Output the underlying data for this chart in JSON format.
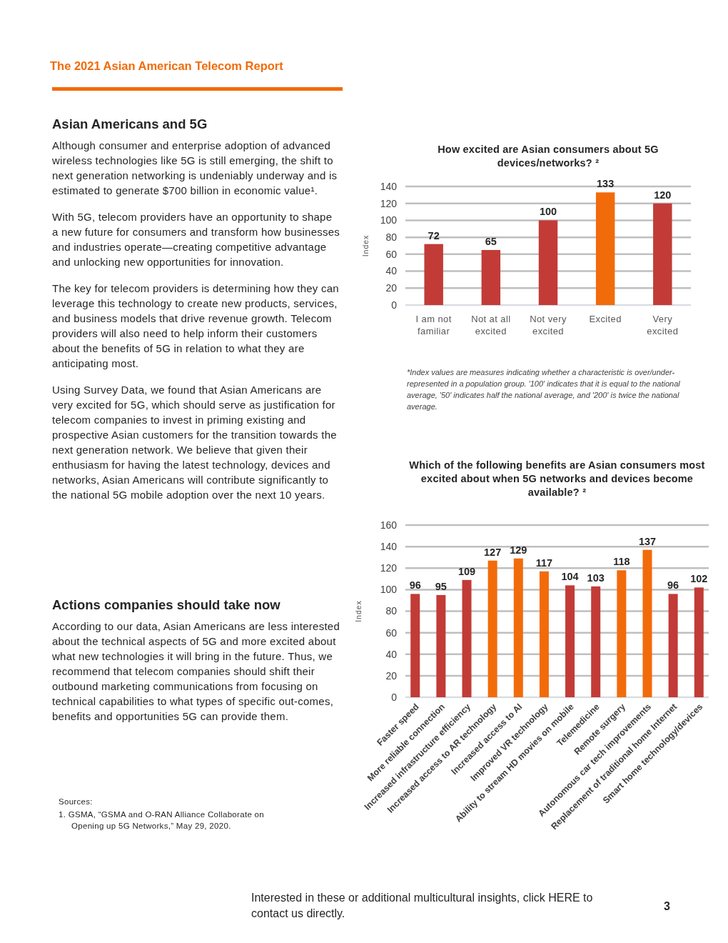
{
  "chart_data": [
    {
      "type": "other",
      "title": "The 2021 Asian American Telecom Report"
    },
    {
      "type": "other",
      "title": "Asian Americans and 5G",
      "annotations": [
        "Although consumer and enterprise adoption of advanced wireless technologies like 5G is still emerging, the shift to next generation networking is undeniably underway and is estimated to generate $700 billion in economic value¹.",
        "With 5G, telecom providers have an opportunity to shape a new future for consumers and transform how businesses and industries operate—creating competitive advantage and unlocking new opportunities for innovation.",
        "The key for telecom providers is determining how they can leverage this technology to create new products, services, and business models that drive revenue growth. Telecom providers will also need to help inform their customers about the benefits of 5G in relation to what they are anticipating most.",
        "Using Survey Data, we found that Asian Americans are very excited for 5G, which should serve as justification for telecom companies to invest in priming existing and prospective Asian customers for the transition towards the next generation network. We believe that given their enthusiasm for having the latest technology, devices and networks, Asian Americans will contribute significantly to the national 5G mobile adoption over the next 10 years."
      ]
    },
    {
      "type": "bar",
      "title": "How excited are Asian consumers about 5G devices/networks? ²",
      "ylabel": "Index",
      "categories": [
        "I am not familiar",
        "Not at all excited",
        "Not very excited",
        "Excited",
        "Very excited"
      ],
      "values": [
        72,
        65,
        100,
        133,
        120
      ],
      "colors": [
        "#c23b37",
        "#c23b37",
        "#c23b37",
        "#f26b0a",
        "#c23b37"
      ],
      "ylim": [
        0,
        140
      ],
      "yticks": [
        0,
        20,
        40,
        60,
        80,
        100,
        120,
        140
      ],
      "grid": "y",
      "data_labels": true,
      "annotations": [
        "*Index values are measures indicating whether a characteristic is over/under-represented in a population group. '100' indicates that it is equal to the national average, '50' indicates half the national average, and '200' is twice the national average."
      ]
    },
    {
      "type": "bar",
      "title": "Which of the following benefits are Asian consumers most excited about when 5G networks and devices become available? ²",
      "ylabel": "Index",
      "categories": [
        "Faster speed",
        "More reliable connection",
        "Increased infrastructure efficiency",
        "Increased access to AR technology",
        "Increased access to AI",
        "Improved VR technology",
        "Ability to stream HD movies on mobile",
        "Telemedicine",
        "Remote surgery",
        "Autonomous car tech improvements",
        "Replacement of traditional home Internet",
        "Smart home technology/devices"
      ],
      "values": [
        96,
        95,
        109,
        127,
        129,
        117,
        104,
        103,
        118,
        137,
        96,
        102
      ],
      "colors": [
        "#c23b37",
        "#c23b37",
        "#c23b37",
        "#f26b0a",
        "#f26b0a",
        "#f26b0a",
        "#c23b37",
        "#c23b37",
        "#f26b0a",
        "#f26b0a",
        "#c23b37",
        "#c23b37"
      ],
      "ylim": [
        0,
        160
      ],
      "yticks": [
        0,
        20,
        40,
        60,
        80,
        100,
        120,
        140,
        160
      ],
      "grid": "y",
      "data_labels": true
    },
    {
      "type": "other",
      "title": "Actions companies should take now",
      "annotations": [
        "According to our data, Asian Americans are less interested about the technical aspects of 5G and more excited about what new technologies it will bring in the future. Thus, we recommend that telecom companies should shift their outbound marketing communications from focusing on technical capabilities to what types of specific out-comes, benefits and opportunities 5G can provide them."
      ]
    },
    {
      "type": "other",
      "title": "Sources:",
      "annotations": [
        "1. GSMA, “GSMA and O-RAN Alliance Collaborate on Opening up 5G Networks,” May 29, 2020."
      ]
    },
    {
      "type": "other",
      "annotations": [
        "Interested in these or additional multicultural insights, click HERE to contact us directly.",
        "3"
      ]
    }
  ]
}
